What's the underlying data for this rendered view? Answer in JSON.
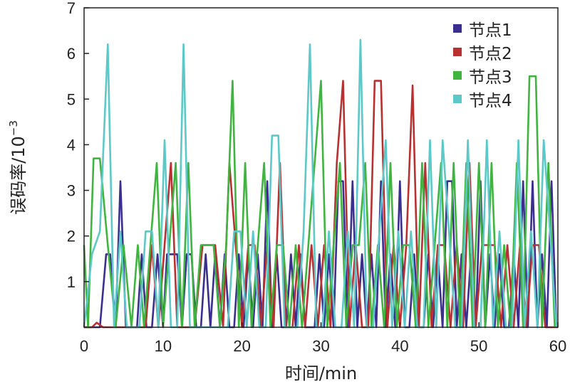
{
  "chart_data": {
    "type": "line",
    "title": "",
    "xlabel": "时间/min",
    "ylabel": "误码率/10",
    "ylabel_exponent": "−3",
    "xlim": [
      0,
      60
    ],
    "ylim": [
      0,
      7
    ],
    "xticks": [
      0,
      10,
      20,
      30,
      40,
      50,
      60
    ],
    "yticks": [
      1,
      2,
      3,
      4,
      5,
      6,
      7
    ],
    "legend_position": "top-right",
    "grid": false,
    "series": [
      {
        "name": "节点1",
        "color": "#3a2f8f",
        "x": [
          0,
          1,
          2,
          2.8,
          3.3,
          4,
          4.6,
          5.3,
          6,
          6.7,
          7.3,
          7.9,
          8.6,
          9.3,
          10,
          10.5,
          11.1,
          11.8,
          12.4,
          13,
          13.6,
          14.2,
          14.8,
          15.4,
          16,
          16.6,
          17.2,
          17.8,
          18.4,
          19,
          19.6,
          20.2,
          20.8,
          21.4,
          22,
          22.6,
          23.2,
          23.8,
          24.4,
          25,
          25.6,
          26.2,
          26.8,
          27.4,
          28,
          28.6,
          29.2,
          29.8,
          30.4,
          31,
          31.6,
          32.2,
          32.8,
          33.4,
          34,
          34.6,
          35.2,
          35.8,
          36.4,
          37,
          37.6,
          38.2,
          38.8,
          39.4,
          40,
          40.6,
          41.2,
          41.8,
          42.4,
          43,
          43.6,
          44.2,
          44.8,
          45.4,
          46,
          46.6,
          47.2,
          47.8,
          48.4,
          49,
          49.6,
          50.2,
          50.8,
          51.4,
          52,
          52.6,
          53.2,
          53.8,
          54.4,
          55,
          55.6,
          56.2,
          56.8,
          57.4,
          58,
          58.6,
          59.2,
          59.8
        ],
        "y": [
          0,
          0,
          0,
          1.6,
          1.6,
          0,
          3.2,
          0,
          0,
          0,
          1.6,
          0,
          0,
          1.6,
          0,
          1.6,
          1.6,
          1.6,
          0,
          1.6,
          1.6,
          0,
          0,
          1.6,
          0,
          1.6,
          0,
          1.6,
          0,
          0,
          1.6,
          0,
          1.6,
          0,
          1.6,
          0,
          3.2,
          0,
          1.6,
          0,
          0,
          1.6,
          0,
          1.6,
          0,
          0,
          0,
          1.6,
          0,
          1.6,
          0,
          3.2,
          3.2,
          0,
          3.2,
          0,
          1.6,
          0,
          1.6,
          0,
          3.2,
          0,
          1.6,
          0,
          3.2,
          0,
          0,
          1.6,
          0,
          0,
          1.6,
          0,
          1.6,
          0,
          3.2,
          3.2,
          0,
          1.6,
          0,
          1.6,
          0,
          3.2,
          0,
          1.6,
          0,
          1.6,
          0,
          0,
          1.6,
          0,
          3.2,
          0,
          3.2,
          0,
          1.6,
          0,
          3.2,
          0
        ]
      },
      {
        "name": "节点2",
        "color": "#b83030",
        "x": [
          0,
          1,
          1.6,
          2.4,
          3.5,
          5,
          6.5,
          7.8,
          8.6,
          9.4,
          10.2,
          11,
          11.8,
          12.6,
          14,
          15,
          15.6,
          16.6,
          17.6,
          18.4,
          19.2,
          20,
          20.8,
          21.6,
          22.4,
          23.2,
          24,
          24.8,
          25.6,
          26.4,
          27.2,
          28,
          28.8,
          29.6,
          30.4,
          31.2,
          32,
          32.8,
          33.6,
          34.4,
          35.2,
          36,
          36.8,
          37.6,
          38.4,
          39.2,
          40,
          40.8,
          41.6,
          42.4,
          43.2,
          44,
          44.8,
          45.6,
          46.4,
          47.2,
          48,
          48.8,
          49.6,
          50.4,
          51.2,
          52,
          52.8,
          53.6,
          54.4,
          55.2,
          56,
          56.8,
          57.6,
          58.4,
          59.2,
          60
        ],
        "y": [
          0,
          0,
          0.1,
          0,
          0,
          0,
          0,
          0,
          1.8,
          0,
          1.8,
          3.6,
          0,
          0,
          0,
          1.8,
          1.8,
          1.8,
          0,
          3.6,
          1.8,
          0,
          1.8,
          1.8,
          0,
          1.8,
          0,
          3.6,
          0,
          0,
          1.8,
          0,
          1.8,
          0,
          1.8,
          0,
          3.6,
          5.4,
          0,
          1.8,
          0,
          0,
          5.4,
          5.4,
          0,
          1.8,
          0,
          1.8,
          5.3,
          0,
          3.6,
          0,
          1.8,
          1.8,
          0,
          1.8,
          0,
          3.6,
          0,
          1.8,
          1.8,
          1.8,
          0,
          1.8,
          0,
          1.8,
          0,
          1.8,
          1.8,
          0,
          0,
          0
        ]
      },
      {
        "name": "节点3",
        "color": "#3fb53f",
        "x": [
          0,
          0.5,
          1.2,
          2,
          3,
          4,
          5,
          6,
          6.8,
          7.6,
          8.4,
          9.2,
          10,
          10.8,
          11.6,
          12.4,
          13.2,
          14,
          14.8,
          15.6,
          16.4,
          17.2,
          18,
          18.8,
          19.6,
          20.4,
          21.2,
          22,
          22.8,
          23.6,
          24.4,
          25.2,
          26,
          26.8,
          27.6,
          28.4,
          29.2,
          30,
          30.8,
          31.6,
          32.4,
          33.2,
          34,
          34.8,
          35.6,
          36.4,
          37.2,
          38,
          38.8,
          39.6,
          40.4,
          41.2,
          42,
          42.8,
          43.6,
          44.4,
          45.2,
          46,
          46.8,
          47.6,
          48.4,
          49.2,
          50,
          50.8,
          51.6,
          52.4,
          53.2,
          54,
          54.8,
          55.6,
          56.4,
          57.2,
          58,
          58.8,
          59.6
        ],
        "y": [
          1.8,
          0,
          3.7,
          3.7,
          1.8,
          0,
          1.8,
          0,
          1.8,
          0,
          1.8,
          3.6,
          0,
          1.8,
          3.6,
          0,
          3.6,
          0,
          1.8,
          1.8,
          1.8,
          0,
          1.8,
          5.4,
          0,
          3.6,
          0,
          1.8,
          3.6,
          0,
          1.8,
          1.8,
          0,
          1.8,
          0,
          1.8,
          3.6,
          5.4,
          0,
          1.8,
          3.6,
          0,
          1.8,
          1.8,
          3.6,
          0,
          1.8,
          0,
          3.6,
          0,
          1.8,
          1.8,
          0,
          3.6,
          0,
          1.8,
          3.6,
          0,
          3.6,
          0,
          3.6,
          0,
          3.6,
          0,
          3.6,
          0,
          1.8,
          0,
          3.6,
          0,
          5.5,
          5.5,
          0,
          3.6,
          0
        ]
      },
      {
        "name": "节点4",
        "color": "#5cc8c8",
        "x": [
          0,
          1,
          2,
          3,
          3.8,
          4.6,
          5.4,
          6.2,
          7,
          7.8,
          8.6,
          9.4,
          10.2,
          11,
          11.8,
          12.6,
          13.4,
          14.2,
          15,
          15.8,
          16.6,
          17.4,
          18.2,
          19,
          19.8,
          20.6,
          21.4,
          22.2,
          23,
          23.8,
          24.6,
          25.4,
          26.2,
          27,
          27.8,
          28.6,
          29.4,
          30.2,
          31,
          31.8,
          32.6,
          33.4,
          34.2,
          35,
          35.8,
          36.6,
          37.4,
          38.2,
          39,
          39.8,
          40.6,
          41.4,
          42.2,
          43,
          43.8,
          44.6,
          45.4,
          46.2,
          47,
          47.8,
          48.6,
          49.4,
          50.2,
          51,
          51.8,
          52.6,
          53.4,
          54.2,
          55,
          55.8,
          56.6,
          57.4,
          58.2,
          59,
          59.8
        ],
        "y": [
          0,
          1.6,
          2.1,
          6.2,
          0,
          2.1,
          0,
          0,
          0,
          2.1,
          2.1,
          0,
          4.1,
          0,
          0,
          6.2,
          0,
          0,
          0,
          0,
          0,
          0,
          0,
          2.1,
          2.1,
          0,
          2.1,
          0,
          0,
          4.2,
          4.2,
          0,
          0,
          0,
          2.1,
          6.2,
          0,
          0,
          2.1,
          0,
          0,
          2.1,
          0,
          6.3,
          0,
          0,
          2.1,
          4.1,
          0,
          2.1,
          0,
          2.1,
          0,
          0,
          4.1,
          0,
          4.1,
          2.1,
          0,
          0,
          4.1,
          0,
          0,
          4.1,
          0,
          2.1,
          0,
          0,
          4.1,
          0,
          2.1,
          0,
          4.1,
          2.1,
          0
        ]
      }
    ]
  }
}
